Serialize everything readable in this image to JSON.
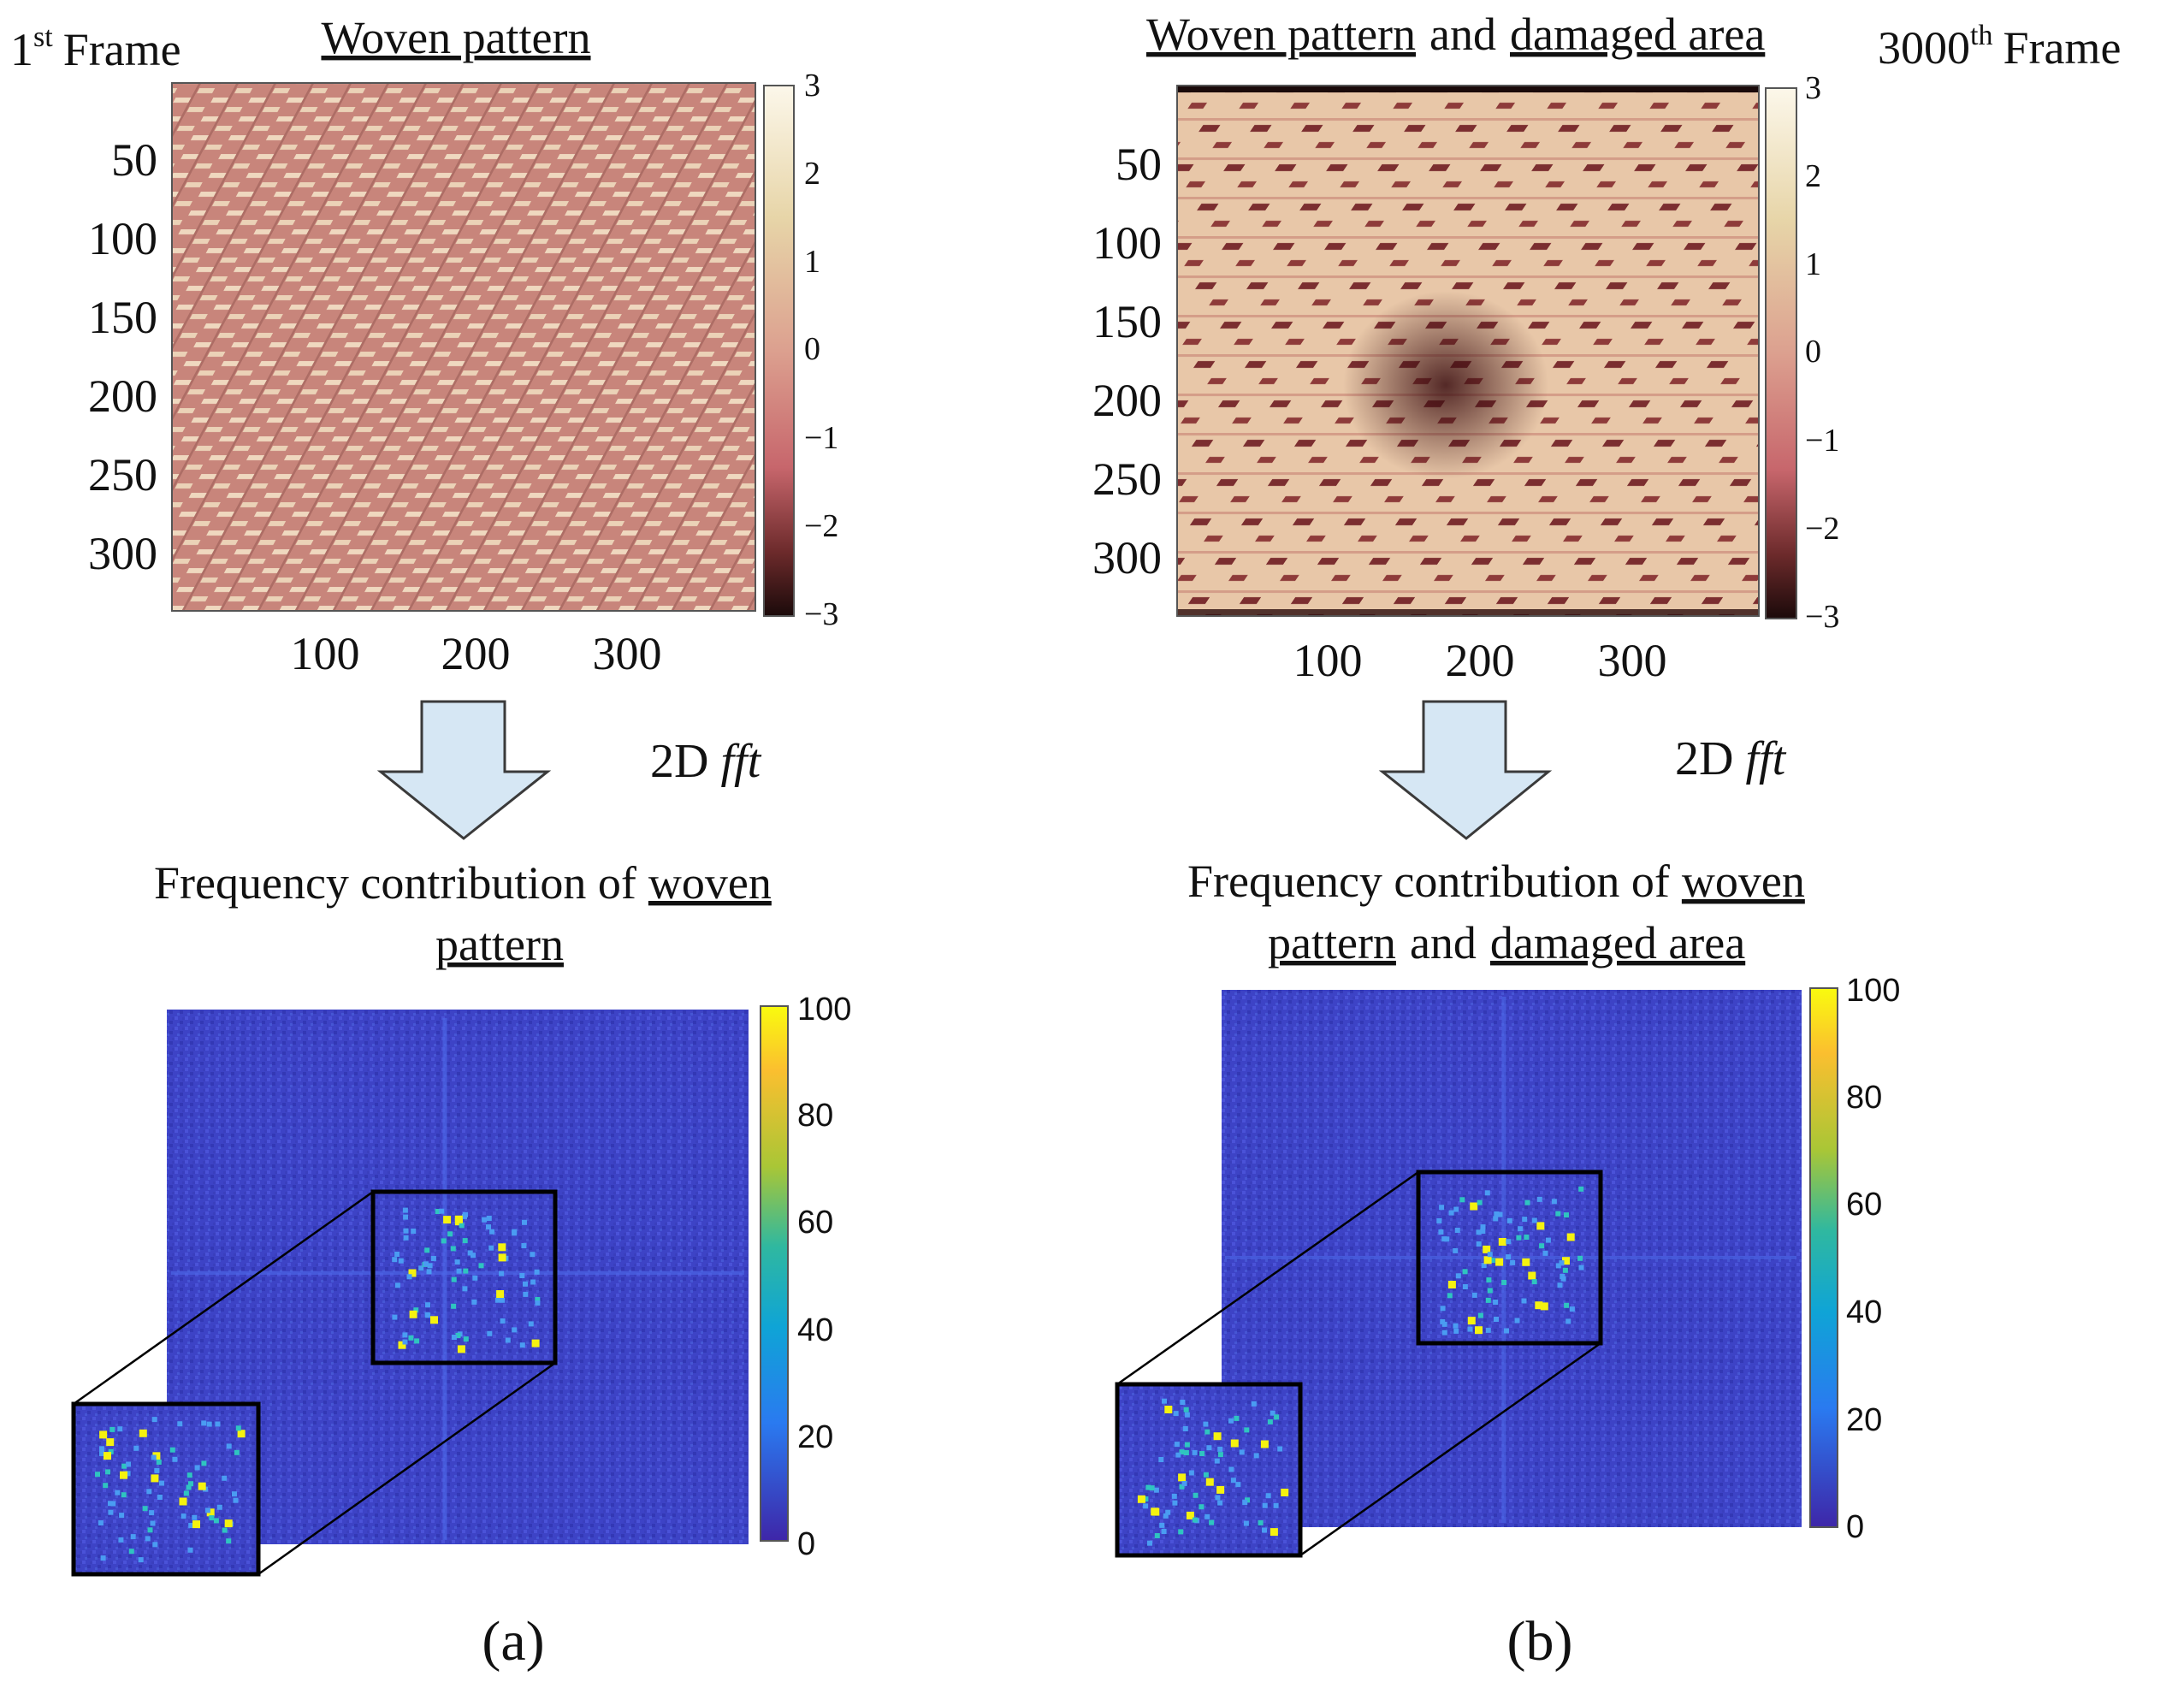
{
  "left_panel": {
    "frame_num": "1",
    "frame_sup": "st",
    "frame_word": "Frame",
    "top_title": "Woven pattern",
    "y_ticks": [
      "50",
      "100",
      "150",
      "200",
      "250",
      "300"
    ],
    "x_ticks": [
      "100",
      "200",
      "300"
    ],
    "colorbar_ticks": [
      "3",
      "2",
      "1",
      "0",
      "−1",
      "−2",
      "−3"
    ],
    "arrow_label_2d": "2D",
    "arrow_label_fft": "fft",
    "freq_title_line1": "Frequency  contribution of",
    "freq_title_line1_ul": "woven",
    "freq_title_line2_ul": "pattern",
    "fft_colorbar_ticks": [
      "100",
      "80",
      "60",
      "40",
      "20",
      "0"
    ],
    "label": "(a)"
  },
  "right_panel": {
    "top_title_ul1": "Woven pattern",
    "top_title_mid": "and",
    "top_title_ul2": "damaged area",
    "frame_num": "3000",
    "frame_sup": "th",
    "frame_word": "Frame",
    "y_ticks": [
      "50",
      "100",
      "150",
      "200",
      "250",
      "300"
    ],
    "x_ticks": [
      "100",
      "200",
      "300"
    ],
    "colorbar_ticks": [
      "3",
      "2",
      "1",
      "0",
      "−1",
      "−2",
      "−3"
    ],
    "arrow_label_2d": "2D",
    "arrow_label_fft": "fft",
    "freq_title_line1": "Frequency  contribution of",
    "freq_title_line1_ul": "woven",
    "freq_title_line2_ul1": "pattern",
    "freq_title_line2_mid": "and",
    "freq_title_line2_ul2": "damaged area",
    "fft_colorbar_ticks": [
      "100",
      "80",
      "60",
      "40",
      "20",
      "0"
    ],
    "label": "(b)"
  },
  "colors": {
    "arrow_fill": "#d6e7f4",
    "arrow_stroke": "#3a3a3a",
    "fft_background": "#3f43c8",
    "weave_base": "#c9857a",
    "weave_light": "#f1dcc0",
    "damage_base": "#e9c8a8",
    "damage_dark": "#7a2b2b"
  }
}
